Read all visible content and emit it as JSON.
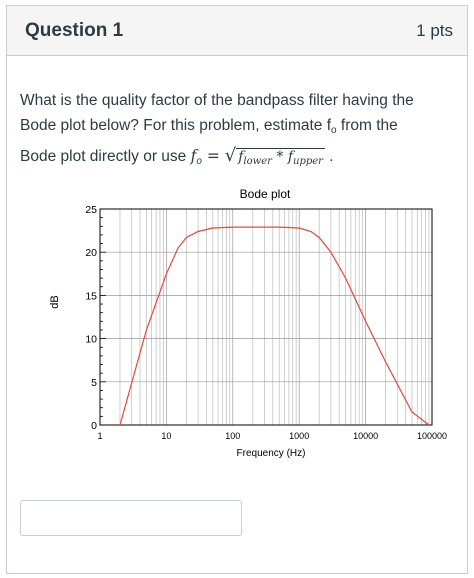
{
  "header": {
    "title": "Question 1",
    "points": "1 pts"
  },
  "question": {
    "line1": "What is the quality factor of the bandpass filter having the",
    "line2a": "Bode plot below? For this problem, estimate f",
    "line2sub": "o",
    "line2b": " from the",
    "line3": "Bode plot directly or use ",
    "formula_lhs": "f",
    "formula_lhs_sub": "o",
    "formula_eq": " = ",
    "formula_term1": "f",
    "formula_term1_sub": "lower",
    "formula_op": " * ",
    "formula_term2": "f",
    "formula_term2_sub": "upper",
    "formula_end": " ."
  },
  "chart_data": {
    "type": "line",
    "title": "Bode plot",
    "xlabel": "Frequency (Hz)",
    "ylabel": "dB",
    "xscale": "log",
    "xlim": [
      1,
      100000
    ],
    "ylim": [
      0,
      25
    ],
    "x_tick_labels": [
      "1",
      "10",
      "100",
      "1000",
      "10000",
      "100000"
    ],
    "y_tick_labels": [
      "0",
      "5",
      "10",
      "15",
      "20",
      "25"
    ],
    "grid": true,
    "line_color": "#e8453c",
    "series": [
      {
        "x": [
          2,
          5,
          10,
          15,
          20,
          30,
          50,
          100,
          200,
          500,
          1000,
          1500,
          2000,
          3000,
          5000,
          10000,
          20000,
          50000,
          90000
        ],
        "y": [
          0,
          11,
          17.5,
          20.5,
          21.7,
          22.4,
          22.8,
          22.9,
          22.9,
          22.9,
          22.8,
          22.4,
          21.7,
          20,
          17,
          12,
          7.3,
          1.5,
          0
        ]
      }
    ]
  },
  "answer": {
    "value": "",
    "placeholder": ""
  }
}
